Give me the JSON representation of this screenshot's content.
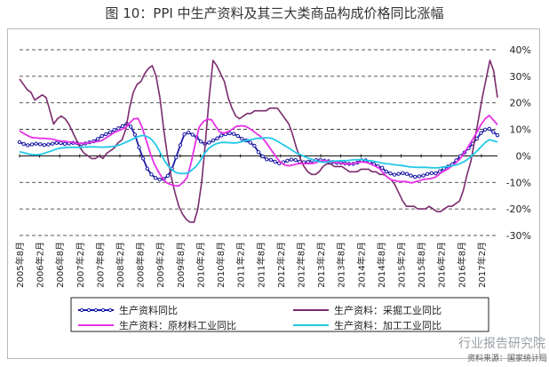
{
  "chart_data": {
    "type": "line",
    "title": "图 10：PPI 中生产资料及其三大类商品构成价格同比涨幅",
    "ylim": [
      -30,
      40
    ],
    "yticks": [
      {
        "value": 40,
        "label": "40%"
      },
      {
        "value": 30,
        "label": "30%"
      },
      {
        "value": 20,
        "label": "20%"
      },
      {
        "value": 10,
        "label": "10%"
      },
      {
        "value": 0,
        "label": "0%"
      },
      {
        "value": -10,
        "label": "-10%"
      },
      {
        "value": -20,
        "label": "-20%"
      },
      {
        "value": -30,
        "label": "-30%"
      }
    ],
    "x_tick_labels": [
      "2005年8月",
      "2006年2月",
      "2006年8月",
      "2007年2月",
      "2007年8月",
      "2008年2月",
      "2008年8月",
      "2009年2月",
      "2009年8月",
      "2010年2月",
      "2010年8月",
      "2011年2月",
      "2011年8月",
      "2012年2月",
      "2012年8月",
      "2013年2月",
      "2013年8月",
      "2014年2月",
      "2014年8月",
      "2015年2月",
      "2015年8月",
      "2016年2月",
      "2016年8月",
      "2017年2月"
    ],
    "grid": "dashed horizontal",
    "legend_position": "bottom",
    "series": [
      {
        "name": "生产资料同比",
        "color": "#1a1aa6",
        "style": "line-with-markers",
        "values": [
          5.2,
          4.5,
          4.0,
          4.3,
          4.6,
          4.4,
          4.1,
          4.3,
          4.6,
          4.9,
          4.8,
          4.5,
          4.7,
          4.9,
          4.8,
          4.4,
          4.7,
          5.1,
          5.5,
          6.4,
          7.5,
          8.2,
          8.9,
          9.8,
          10.4,
          11.2,
          12.1,
          11.0,
          8.0,
          3.2,
          -1.0,
          -4.8,
          -7.0,
          -8.3,
          -8.9,
          -8.7,
          -7.5,
          -4.8,
          -0.6,
          4.0,
          8.1,
          8.8,
          8.0,
          7.0,
          5.4,
          4.5,
          5.0,
          5.8,
          6.6,
          7.7,
          8.2,
          8.5,
          8.3,
          7.5,
          6.4,
          5.8,
          5.0,
          3.8,
          1.4,
          -0.2,
          -1.3,
          -1.5,
          -2.2,
          -2.8,
          -2.4,
          -1.8,
          -1.4,
          -1.6,
          -2.2,
          -2.4,
          -2.2,
          -1.8,
          -1.6,
          -1.6,
          -1.8,
          -2.0,
          -2.3,
          -2.6,
          -2.6,
          -2.8,
          -3.0,
          -3.0,
          -2.5,
          -1.7,
          -1.7,
          -2.3,
          -3.1,
          -3.9,
          -4.5,
          -5.9,
          -6.6,
          -7.1,
          -6.8,
          -6.5,
          -6.8,
          -7.4,
          -7.9,
          -7.7,
          -7.4,
          -6.8,
          -6.5,
          -6.6,
          -5.8,
          -4.8,
          -4.0,
          -3.2,
          -1.7,
          -0.1,
          1.3,
          2.9,
          4.6,
          6.5,
          8.6,
          9.9,
          10.2,
          9.0,
          7.8
        ],
        "note": "~monthly, Aug 2005 – Apr 2017"
      },
      {
        "name": "生产资料：采掘工业同比",
        "color": "#7a2a6e",
        "style": "line",
        "values": [
          29,
          27,
          25,
          24,
          21,
          22,
          23,
          22,
          17,
          12,
          14,
          15,
          14,
          12,
          9,
          6,
          3,
          1,
          0,
          -1,
          -1,
          0,
          -1,
          1,
          2,
          3,
          5,
          6,
          10,
          18,
          24,
          27,
          28,
          31,
          33,
          34,
          30,
          22,
          10,
          0,
          -8,
          -14,
          -19,
          -22,
          -24,
          -25,
          -25,
          -20,
          -10,
          5,
          22,
          36,
          34,
          31,
          28,
          22,
          18,
          15,
          14,
          15,
          16,
          16,
          17,
          17,
          17,
          17,
          18,
          18,
          18,
          16,
          14,
          12,
          8,
          3,
          -1,
          -4,
          -6,
          -7,
          -7,
          -6,
          -4,
          -3,
          -3,
          -4,
          -4,
          -4,
          -5,
          -6,
          -6,
          -6,
          -5,
          -5,
          -5,
          -6,
          -6,
          -7,
          -7,
          -8,
          -9,
          -11,
          -14,
          -17,
          -19,
          -19,
          -19,
          -20,
          -20,
          -20,
          -19,
          -20,
          -21,
          -21,
          -20,
          -19,
          -19,
          -18,
          -17,
          -13,
          -7,
          -2,
          6,
          14,
          22,
          29,
          36,
          32,
          22
        ],
        "note": "~monthly, Aug 2005 – Apr 2017"
      },
      {
        "name": "生产资料：原材料工业同比",
        "color": "#e830e8",
        "style": "line",
        "values": [
          9.5,
          8.5,
          7.6,
          6.9,
          6.8,
          6.6,
          6.6,
          6.5,
          6.3,
          5.9,
          5.6,
          5.5,
          5.3,
          5.1,
          4.7,
          4.7,
          4.8,
          5.0,
          5.3,
          5.4,
          5.7,
          6.6,
          7.6,
          8.7,
          9.4,
          10.0,
          10.7,
          12.5,
          14.0,
          14.1,
          10.8,
          6.0,
          1.0,
          -3.0,
          -6.0,
          -8.4,
          -10.1,
          -10.8,
          -11.2,
          -11.3,
          -10.0,
          -8.3,
          -2.7,
          4.5,
          10.9,
          12.9,
          13.8,
          13.6,
          11.2,
          9.0,
          8.6,
          9.1,
          10.0,
          11.1,
          11.3,
          11.3,
          10.6,
          9.6,
          8.4,
          7.3,
          5.8,
          3.6,
          1.4,
          -0.8,
          -2.6,
          -3.5,
          -3.7,
          -3.4,
          -3.0,
          -2.8,
          -2.9,
          -2.9,
          -2.8,
          -2.3,
          -1.8,
          -1.8,
          -2.1,
          -2.4,
          -2.5,
          -2.9,
          -3.0,
          -3.1,
          -2.8,
          -2.4,
          -2.3,
          -2.5,
          -3.1,
          -3.8,
          -4.6,
          -6.3,
          -8.0,
          -9.0,
          -9.3,
          -9.7,
          -9.6,
          -9.8,
          -10.2,
          -9.7,
          -9.3,
          -8.8,
          -8.7,
          -8.4,
          -7.9,
          -6.6,
          -5.7,
          -4.8,
          -3.6,
          -2.4,
          -0.8,
          1.4,
          3.9,
          6.4,
          9.1,
          11.9,
          14.0,
          15.2,
          13.5,
          11.7
        ],
        "note": "~monthly, Aug 2005 – Apr 2017"
      },
      {
        "name": "生产资料：加工工业同比",
        "color": "#22c8e8",
        "style": "line",
        "values": [
          1.5,
          1.2,
          0.8,
          0.5,
          0.4,
          0.5,
          0.9,
          1.4,
          1.9,
          2.5,
          2.9,
          3.1,
          3.2,
          3.3,
          3.2,
          3.2,
          3.3,
          3.4,
          3.4,
          3.4,
          3.3,
          3.3,
          3.4,
          3.5,
          3.7,
          4.2,
          4.8,
          5.5,
          6.2,
          7.0,
          7.5,
          7.7,
          7.1,
          6.0,
          4.1,
          1.3,
          -1.6,
          -3.8,
          -5.3,
          -6.3,
          -6.6,
          -6.7,
          -6.4,
          -5.2,
          -3.9,
          -1.8,
          0.8,
          2.7,
          3.8,
          4.6,
          5.0,
          5.1,
          5.0,
          4.9,
          4.9,
          5.2,
          5.7,
          6.0,
          6.2,
          6.6,
          6.6,
          6.8,
          6.8,
          6.5,
          5.7,
          4.8,
          3.9,
          3.0,
          2.0,
          1.0,
          0.4,
          -0.3,
          -0.9,
          -1.5,
          -2.0,
          -2.3,
          -2.4,
          -2.2,
          -2.0,
          -1.9,
          -1.8,
          -1.8,
          -1.7,
          -1.5,
          -1.4,
          -1.4,
          -1.6,
          -1.8,
          -2.0,
          -2.3,
          -2.6,
          -2.9,
          -3.0,
          -3.3,
          -3.4,
          -3.6,
          -3.8,
          -4.1,
          -4.2,
          -4.3,
          -4.3,
          -4.3,
          -4.4,
          -4.5,
          -4.5,
          -4.3,
          -4.1,
          -3.9,
          -3.6,
          -3.3,
          -2.7,
          -1.9,
          -0.8,
          0.6,
          2.0,
          3.6,
          5.1,
          6.1,
          5.7,
          5.2
        ],
        "note": "~monthly, Aug 2005 – Apr 2017"
      }
    ]
  },
  "source_text": "资料来源：国家统计局",
  "watermark_text": "行业报告研究院"
}
